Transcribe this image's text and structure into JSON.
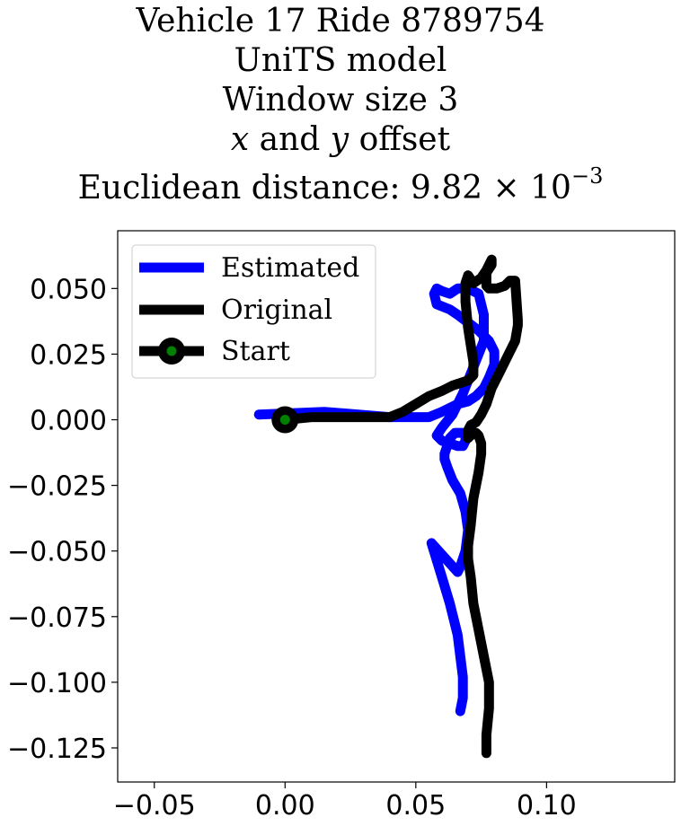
{
  "chart_data": {
    "type": "line",
    "title_lines": [
      "Vehicle 17 Ride 8789754",
      "UniTS model",
      "Window size 3",
      "x and y offset",
      "Euclidean distance: 9.82 × 10⁻³"
    ],
    "title_parts": {
      "var_x": "x",
      "and_text": " and ",
      "var_y": "y",
      "offset_text": " offset",
      "distance_prefix": "Euclidean distance: 9.82 × 10",
      "distance_exponent": "−3"
    },
    "xlim": [
      -0.064,
      0.149
    ],
    "ylim": [
      -0.138,
      0.072
    ],
    "xticks": [
      -0.05,
      0.0,
      0.05,
      0.1
    ],
    "xtick_labels": [
      "−0.05",
      "0.00",
      "0.05",
      "0.10"
    ],
    "yticks": [
      0.05,
      0.025,
      0.0,
      -0.025,
      -0.05,
      -0.075,
      -0.1,
      -0.125
    ],
    "ytick_labels": [
      "0.050",
      "0.025",
      "0.000",
      "−0.025",
      "−0.050",
      "−0.075",
      "−0.100",
      "−0.125"
    ],
    "grid": false,
    "legend_position": "top-left",
    "series": [
      {
        "name": "Estimated",
        "color": "#0000ff",
        "x": [
          -0.01,
          0.015,
          0.04,
          0.055,
          0.06,
          0.066,
          0.07,
          0.073,
          0.076,
          0.078,
          0.08,
          0.08,
          0.078,
          0.074,
          0.07,
          0.066,
          0.063,
          0.058,
          0.057,
          0.058,
          0.06,
          0.063,
          0.066,
          0.07,
          0.074,
          0.076,
          0.076,
          0.072,
          0.068,
          0.064,
          0.06,
          0.058,
          0.06,
          0.063,
          0.066,
          0.068,
          0.069,
          0.069,
          0.068,
          0.067,
          0.066,
          0.065,
          0.063,
          0.062,
          0.061,
          0.061,
          0.062,
          0.064,
          0.067,
          0.069,
          0.07,
          0.069,
          0.067,
          0.066,
          0.056,
          0.06,
          0.063,
          0.066,
          0.067,
          0.068,
          0.068,
          0.068,
          0.067
        ],
        "y": [
          0.002,
          0.003,
          0.001,
          0.001,
          0.003,
          0.006,
          0.007,
          0.009,
          0.012,
          0.016,
          0.021,
          0.026,
          0.03,
          0.034,
          0.037,
          0.04,
          0.042,
          0.044,
          0.048,
          0.05,
          0.049,
          0.048,
          0.05,
          0.05,
          0.048,
          0.04,
          0.03,
          0.02,
          0.01,
          0.002,
          -0.003,
          -0.006,
          -0.008,
          -0.009,
          -0.01,
          -0.01,
          -0.008,
          -0.006,
          -0.005,
          -0.005,
          -0.005,
          -0.005,
          -0.007,
          -0.01,
          -0.013,
          -0.015,
          -0.018,
          -0.023,
          -0.028,
          -0.035,
          -0.042,
          -0.05,
          -0.056,
          -0.058,
          -0.047,
          -0.06,
          -0.07,
          -0.082,
          -0.09,
          -0.098,
          -0.102,
          -0.106,
          -0.111
        ]
      },
      {
        "name": "Original",
        "color": "#000000",
        "x": [
          0.0,
          0.01,
          0.02,
          0.03,
          0.04,
          0.045,
          0.05,
          0.055,
          0.06,
          0.064,
          0.067,
          0.07,
          0.072,
          0.072,
          0.07,
          0.069,
          0.069,
          0.07,
          0.07,
          0.072,
          0.075,
          0.077,
          0.078,
          0.079,
          0.079,
          0.077,
          0.077,
          0.078,
          0.081,
          0.084,
          0.086,
          0.088,
          0.089,
          0.089,
          0.088,
          0.085,
          0.082,
          0.079,
          0.077,
          0.075,
          0.073,
          0.071,
          0.07,
          0.07,
          0.07,
          0.071,
          0.072,
          0.073,
          0.074,
          0.075,
          0.075,
          0.074,
          0.072,
          0.071,
          0.07,
          0.07,
          0.071,
          0.072,
          0.074,
          0.076,
          0.078,
          0.078,
          0.077,
          0.077
        ],
        "y": [
          0.0,
          0.001,
          0.001,
          0.001,
          0.001,
          0.003,
          0.006,
          0.009,
          0.011,
          0.013,
          0.014,
          0.015,
          0.017,
          0.022,
          0.035,
          0.045,
          0.052,
          0.055,
          0.055,
          0.052,
          0.054,
          0.057,
          0.059,
          0.061,
          0.059,
          0.056,
          0.051,
          0.05,
          0.05,
          0.051,
          0.053,
          0.053,
          0.038,
          0.036,
          0.03,
          0.024,
          0.018,
          0.012,
          0.006,
          0.002,
          -0.001,
          -0.002,
          -0.004,
          -0.006,
          -0.007,
          -0.006,
          -0.005,
          -0.005,
          -0.006,
          -0.009,
          -0.013,
          -0.02,
          -0.03,
          -0.04,
          -0.048,
          -0.053,
          -0.06,
          -0.07,
          -0.08,
          -0.09,
          -0.1,
          -0.11,
          -0.12,
          -0.127
        ]
      }
    ],
    "start_marker": {
      "name": "Start",
      "x": 0.0,
      "y": 0.0,
      "outer_color": "#000000",
      "inner_color": "#008000"
    }
  }
}
